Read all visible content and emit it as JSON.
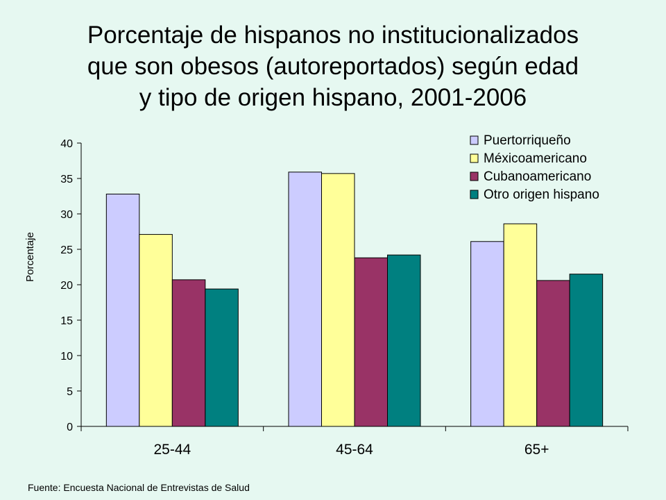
{
  "title_lines": [
    "Porcentaje de hispanos no institucionalizados",
    "que son obesos (autoreportados)  según edad",
    "y tipo de origen hispano, 2001-2006"
  ],
  "source": "Fuente: Encuesta Nacional de Entrevistas de Salud",
  "colors": {
    "background": "#e6f8f1",
    "Puertorriqueño": "#ccccff",
    "Méxicoamericano": "#ffff99",
    "Cubanoamericano": "#993366",
    "Otro origen hispano": "#008080"
  },
  "chart_data": {
    "type": "bar",
    "title": "Porcentaje de hispanos no institucionalizados que son obesos (autoreportados)  según edad y tipo de origen hispano, 2001-2006",
    "xlabel": "",
    "ylabel": "Porcentaje",
    "categories": [
      "25-44",
      "45-64",
      "65+"
    ],
    "ylim": [
      0,
      40
    ],
    "yticks": [
      0,
      5,
      10,
      15,
      20,
      25,
      30,
      35,
      40
    ],
    "grid": false,
    "legend_position": "top-right",
    "series": [
      {
        "name": "Puertorriqueño",
        "values": [
          32.8,
          35.9,
          26.1
        ]
      },
      {
        "name": "Méxicoamericano",
        "values": [
          27.1,
          35.7,
          28.6
        ]
      },
      {
        "name": "Cubanoamericano",
        "values": [
          20.7,
          23.8,
          20.6
        ]
      },
      {
        "name": "Otro origen hispano",
        "values": [
          19.4,
          24.2,
          21.5
        ]
      }
    ]
  }
}
